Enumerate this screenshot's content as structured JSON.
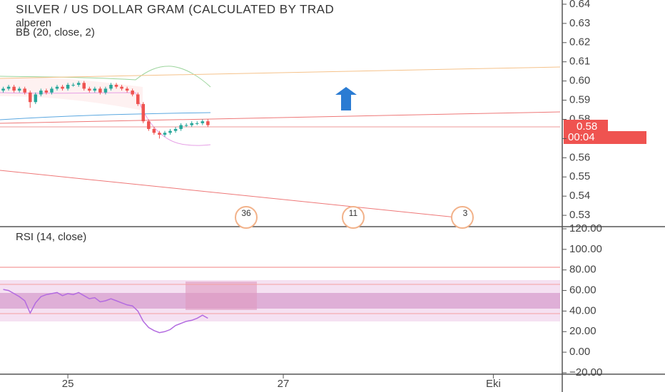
{
  "chart_data": [
    {
      "type": "candlestick",
      "title": "SILVER / US DOLLAR GRAM (CALCULATED BY TRAD",
      "subtitle": "alperen",
      "indicator": "BB (20, close, 2)",
      "x": [
        0,
        1,
        2,
        3,
        4,
        5,
        6,
        7,
        8,
        9,
        10,
        11,
        12,
        13,
        14,
        15,
        16,
        17,
        18,
        19,
        20,
        21,
        22,
        23,
        24,
        25,
        26,
        27,
        28,
        29,
        30,
        31,
        32,
        33,
        34,
        35,
        36,
        37,
        38
      ],
      "open": [
        0.595,
        0.596,
        0.597,
        0.595,
        0.596,
        0.594,
        0.589,
        0.593,
        0.595,
        0.594,
        0.596,
        0.597,
        0.596,
        0.598,
        0.598,
        0.599,
        0.596,
        0.595,
        0.596,
        0.594,
        0.596,
        0.598,
        0.597,
        0.596,
        0.595,
        0.593,
        0.588,
        0.579,
        0.575,
        0.573,
        0.572,
        0.573,
        0.574,
        0.575,
        0.577,
        0.577,
        0.578,
        0.578,
        0.579
      ],
      "high": [
        0.597,
        0.598,
        0.598,
        0.597,
        0.597,
        0.595,
        0.594,
        0.596,
        0.596,
        0.597,
        0.598,
        0.598,
        0.599,
        0.599,
        0.6,
        0.6,
        0.597,
        0.597,
        0.597,
        0.597,
        0.599,
        0.599,
        0.598,
        0.597,
        0.596,
        0.594,
        0.589,
        0.58,
        0.576,
        0.574,
        0.574,
        0.575,
        0.576,
        0.578,
        0.578,
        0.579,
        0.579,
        0.58,
        0.58
      ],
      "low": [
        0.594,
        0.595,
        0.594,
        0.594,
        0.593,
        0.586,
        0.588,
        0.592,
        0.593,
        0.593,
        0.595,
        0.595,
        0.595,
        0.597,
        0.597,
        0.595,
        0.594,
        0.594,
        0.593,
        0.593,
        0.595,
        0.596,
        0.595,
        0.594,
        0.592,
        0.587,
        0.578,
        0.574,
        0.572,
        0.57,
        0.571,
        0.572,
        0.573,
        0.574,
        0.576,
        0.576,
        0.577,
        0.577,
        0.576
      ],
      "close": [
        0.596,
        0.597,
        0.595,
        0.596,
        0.594,
        0.589,
        0.593,
        0.595,
        0.594,
        0.596,
        0.597,
        0.596,
        0.598,
        0.598,
        0.599,
        0.596,
        0.595,
        0.596,
        0.594,
        0.596,
        0.598,
        0.597,
        0.596,
        0.595,
        0.593,
        0.588,
        0.579,
        0.575,
        0.573,
        0.572,
        0.573,
        0.574,
        0.575,
        0.577,
        0.577,
        0.578,
        0.578,
        0.579,
        0.577
      ],
      "up_color": "#26a69a",
      "down_color": "#ef5350",
      "xlim": [
        -0.6,
        103.4
      ],
      "ylim": [
        0.5241,
        0.6422
      ],
      "yticks": [
        0.53,
        0.54,
        0.55,
        0.56,
        0.57,
        0.58,
        0.59,
        {
          "value": 0.6,
          "label": "0.60"
        },
        0.61,
        0.62,
        0.63,
        0.64
      ],
      "last_price_label": "0.58",
      "countdown": "00:04",
      "events": [
        "36",
        "11",
        "3"
      ]
    },
    {
      "type": "line",
      "title": "RSI (14, close)",
      "x": [
        0,
        1,
        2,
        3,
        4,
        5,
        6,
        7,
        8,
        9,
        10,
        11,
        12,
        13,
        14,
        15,
        16,
        17,
        18,
        19,
        20,
        21,
        22,
        23,
        24,
        25,
        26,
        27,
        28,
        29,
        30,
        31,
        32,
        33,
        34,
        35,
        36,
        37,
        38
      ],
      "values": [
        61,
        60,
        57,
        54,
        50,
        38,
        48,
        54,
        56,
        57,
        58,
        55,
        57,
        56,
        58,
        55,
        52,
        53,
        49,
        50,
        52,
        50,
        48,
        46,
        45,
        40,
        30,
        24,
        21,
        19,
        20,
        22,
        26,
        28,
        30,
        31,
        33,
        36,
        33
      ],
      "color": "#b36be0",
      "xlim": [
        -0.6,
        103.4
      ],
      "ylim": [
        -21.4,
        122.1
      ],
      "yticks": [
        {
          "value": -20,
          "label": "−20.00"
        },
        {
          "value": 0,
          "label": "0.00"
        },
        {
          "value": 20,
          "label": "20.00"
        },
        {
          "value": 40,
          "label": "40.00"
        },
        {
          "value": 60,
          "label": "60.00"
        },
        {
          "value": 80,
          "label": "80.00"
        },
        {
          "value": 100,
          "label": "100.00"
        },
        {
          "value": 120,
          "label": "120.00"
        }
      ],
      "xticks": [
        {
          "value": 12,
          "label": "25"
        },
        {
          "value": 52,
          "label": "27"
        },
        {
          "value": 91,
          "label": "Eki"
        }
      ]
    }
  ]
}
